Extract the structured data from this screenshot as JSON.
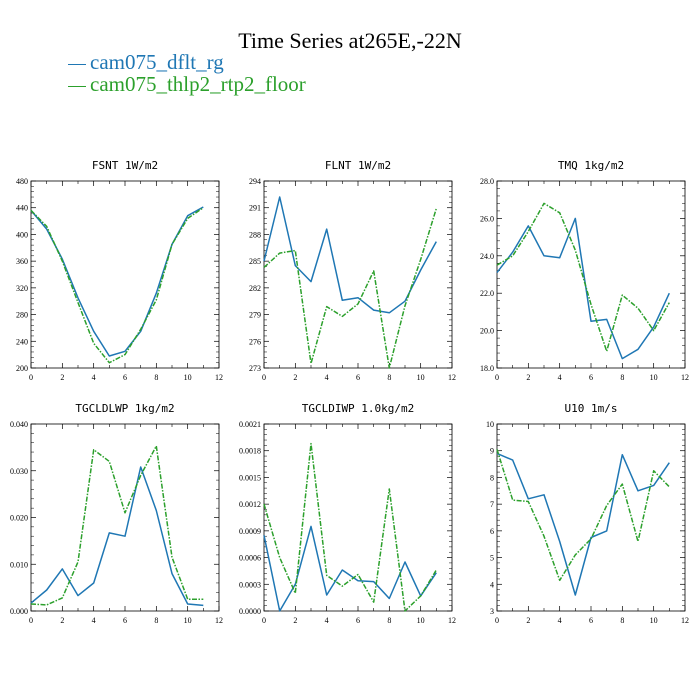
{
  "title": "Time Series at265E,-22N",
  "legend": [
    {
      "label": "cam075_dflt_rg",
      "color": "#1f77b4",
      "dash": "solid"
    },
    {
      "label": "cam075_thlp2_rtp2_floor",
      "color": "#2ca02c",
      "dash": "dashed"
    }
  ],
  "chart_data": [
    {
      "type": "line",
      "title": "FSNT   1W/m2",
      "x": [
        0,
        1,
        2,
        3,
        4,
        5,
        6,
        7,
        8,
        9,
        10,
        11
      ],
      "xlim": [
        0,
        12
      ],
      "xticks": [
        "0",
        "2",
        "4",
        "6",
        "8",
        "10",
        "12"
      ],
      "ylim": [
        200,
        480
      ],
      "yticks": [
        "200",
        "240",
        "280",
        "320",
        "360",
        "400",
        "440",
        "480"
      ],
      "series": [
        {
          "name": "cam075_dflt_rg",
          "values": [
            436,
            408,
            363,
            305,
            255,
            218,
            225,
            255,
            312,
            385,
            428,
            441
          ]
        },
        {
          "name": "cam075_thlp2_rtp2_floor",
          "values": [
            436,
            412,
            360,
            298,
            237,
            208,
            220,
            258,
            302,
            385,
            424,
            440
          ]
        }
      ]
    },
    {
      "type": "line",
      "title": "FLNT   1W/m2",
      "x": [
        0,
        1,
        2,
        3,
        4,
        5,
        6,
        7,
        8,
        9,
        10,
        11
      ],
      "xlim": [
        0,
        12
      ],
      "xticks": [
        "0",
        "2",
        "4",
        "6",
        "8",
        "10",
        "12"
      ],
      "ylim": [
        273,
        294
      ],
      "yticks": [
        "273",
        "276",
        "279",
        "282",
        "285",
        "288",
        "291",
        "294"
      ],
      "series": [
        {
          "name": "cam075_dflt_rg",
          "values": [
            285.0,
            292.2,
            284.5,
            282.7,
            288.6,
            280.6,
            280.9,
            279.5,
            279.2,
            280.5,
            284.0,
            287.2
          ]
        },
        {
          "name": "cam075_thlp2_rtp2_floor",
          "values": [
            284.3,
            285.9,
            286.2,
            273.5,
            279.9,
            278.8,
            280.2,
            283.9,
            273.0,
            280.0,
            285.2,
            290.9
          ]
        }
      ]
    },
    {
      "type": "line",
      "title": "TMQ   1kg/m2",
      "x": [
        0,
        1,
        2,
        3,
        4,
        5,
        6,
        7,
        8,
        9,
        10,
        11
      ],
      "xlim": [
        0,
        12
      ],
      "xticks": [
        "0",
        "2",
        "4",
        "6",
        "8",
        "10",
        "12"
      ],
      "ylim": [
        18.0,
        28.0
      ],
      "yticks": [
        "18.0",
        "20.0",
        "22.0",
        "24.0",
        "26.0",
        "28.0"
      ],
      "series": [
        {
          "name": "cam075_dflt_rg",
          "values": [
            23.1,
            24.2,
            25.6,
            24.0,
            23.9,
            26.0,
            20.5,
            20.6,
            18.5,
            19.0,
            20.2,
            22.0
          ]
        },
        {
          "name": "cam075_thlp2_rtp2_floor",
          "values": [
            23.5,
            24.0,
            25.3,
            26.8,
            26.3,
            24.3,
            21.4,
            18.9,
            21.9,
            21.2,
            20.0,
            21.5
          ]
        }
      ]
    },
    {
      "type": "line",
      "title": "TGCLDLWP   1kg/m2",
      "x": [
        0,
        1,
        2,
        3,
        4,
        5,
        6,
        7,
        8,
        9,
        10,
        11
      ],
      "xlim": [
        0,
        12
      ],
      "xticks": [
        "0",
        "2",
        "4",
        "6",
        "8",
        "10",
        "12"
      ],
      "ylim": [
        0.0,
        0.04
      ],
      "yticks": [
        "0.000",
        "0.010",
        "0.020",
        "0.030",
        "0.040"
      ],
      "series": [
        {
          "name": "cam075_dflt_rg",
          "values": [
            0.0017,
            0.0045,
            0.009,
            0.0033,
            0.006,
            0.0167,
            0.016,
            0.0308,
            0.0215,
            0.008,
            0.0015,
            0.0012
          ]
        },
        {
          "name": "cam075_thlp2_rtp2_floor",
          "values": [
            0.0015,
            0.0013,
            0.0028,
            0.0105,
            0.0345,
            0.032,
            0.021,
            0.029,
            0.0353,
            0.0115,
            0.0025,
            0.0025
          ]
        }
      ]
    },
    {
      "type": "line",
      "title": "TGCLDIWP   1.0kg/m2",
      "x": [
        0,
        1,
        2,
        3,
        4,
        5,
        6,
        7,
        8,
        9,
        10,
        11
      ],
      "xlim": [
        0,
        12
      ],
      "xticks": [
        "0",
        "2",
        "4",
        "6",
        "8",
        "10",
        "12"
      ],
      "ylim": [
        0.0,
        0.0021
      ],
      "yticks": [
        "0.0000",
        "0.0003",
        "0.0006",
        "0.0009",
        "0.0012",
        "0.0015",
        "0.0018",
        "0.0021"
      ],
      "series": [
        {
          "name": "cam075_dflt_rg",
          "values": [
            0.00085,
            0.0,
            0.0003,
            0.00095,
            0.00018,
            0.00046,
            0.00034,
            0.00033,
            0.00014,
            0.00055,
            0.00017,
            0.00043
          ]
        },
        {
          "name": "cam075_thlp2_rtp2_floor",
          "values": [
            0.0012,
            0.0006,
            0.0002,
            0.00188,
            0.0004,
            0.00028,
            0.00041,
            0.0001,
            0.00137,
            0.0,
            0.00017,
            0.00046
          ]
        }
      ]
    },
    {
      "type": "line",
      "title": "U10   1m/s",
      "x": [
        0,
        1,
        2,
        3,
        4,
        5,
        6,
        7,
        8,
        9,
        10,
        11
      ],
      "xlim": [
        0,
        12
      ],
      "xticks": [
        "0",
        "2",
        "4",
        "6",
        "8",
        "10",
        "12"
      ],
      "ylim": [
        3,
        10
      ],
      "yticks": [
        "3",
        "4",
        "5",
        "6",
        "7",
        "8",
        "9",
        "10"
      ],
      "series": [
        {
          "name": "cam075_dflt_rg",
          "values": [
            8.9,
            8.65,
            7.2,
            7.35,
            5.6,
            3.6,
            5.75,
            6.0,
            8.85,
            7.5,
            7.7,
            8.55
          ]
        },
        {
          "name": "cam075_thlp2_rtp2_floor",
          "values": [
            9.05,
            7.15,
            7.1,
            5.8,
            4.15,
            5.1,
            5.7,
            6.95,
            7.75,
            5.6,
            8.25,
            7.65
          ]
        }
      ]
    }
  ]
}
